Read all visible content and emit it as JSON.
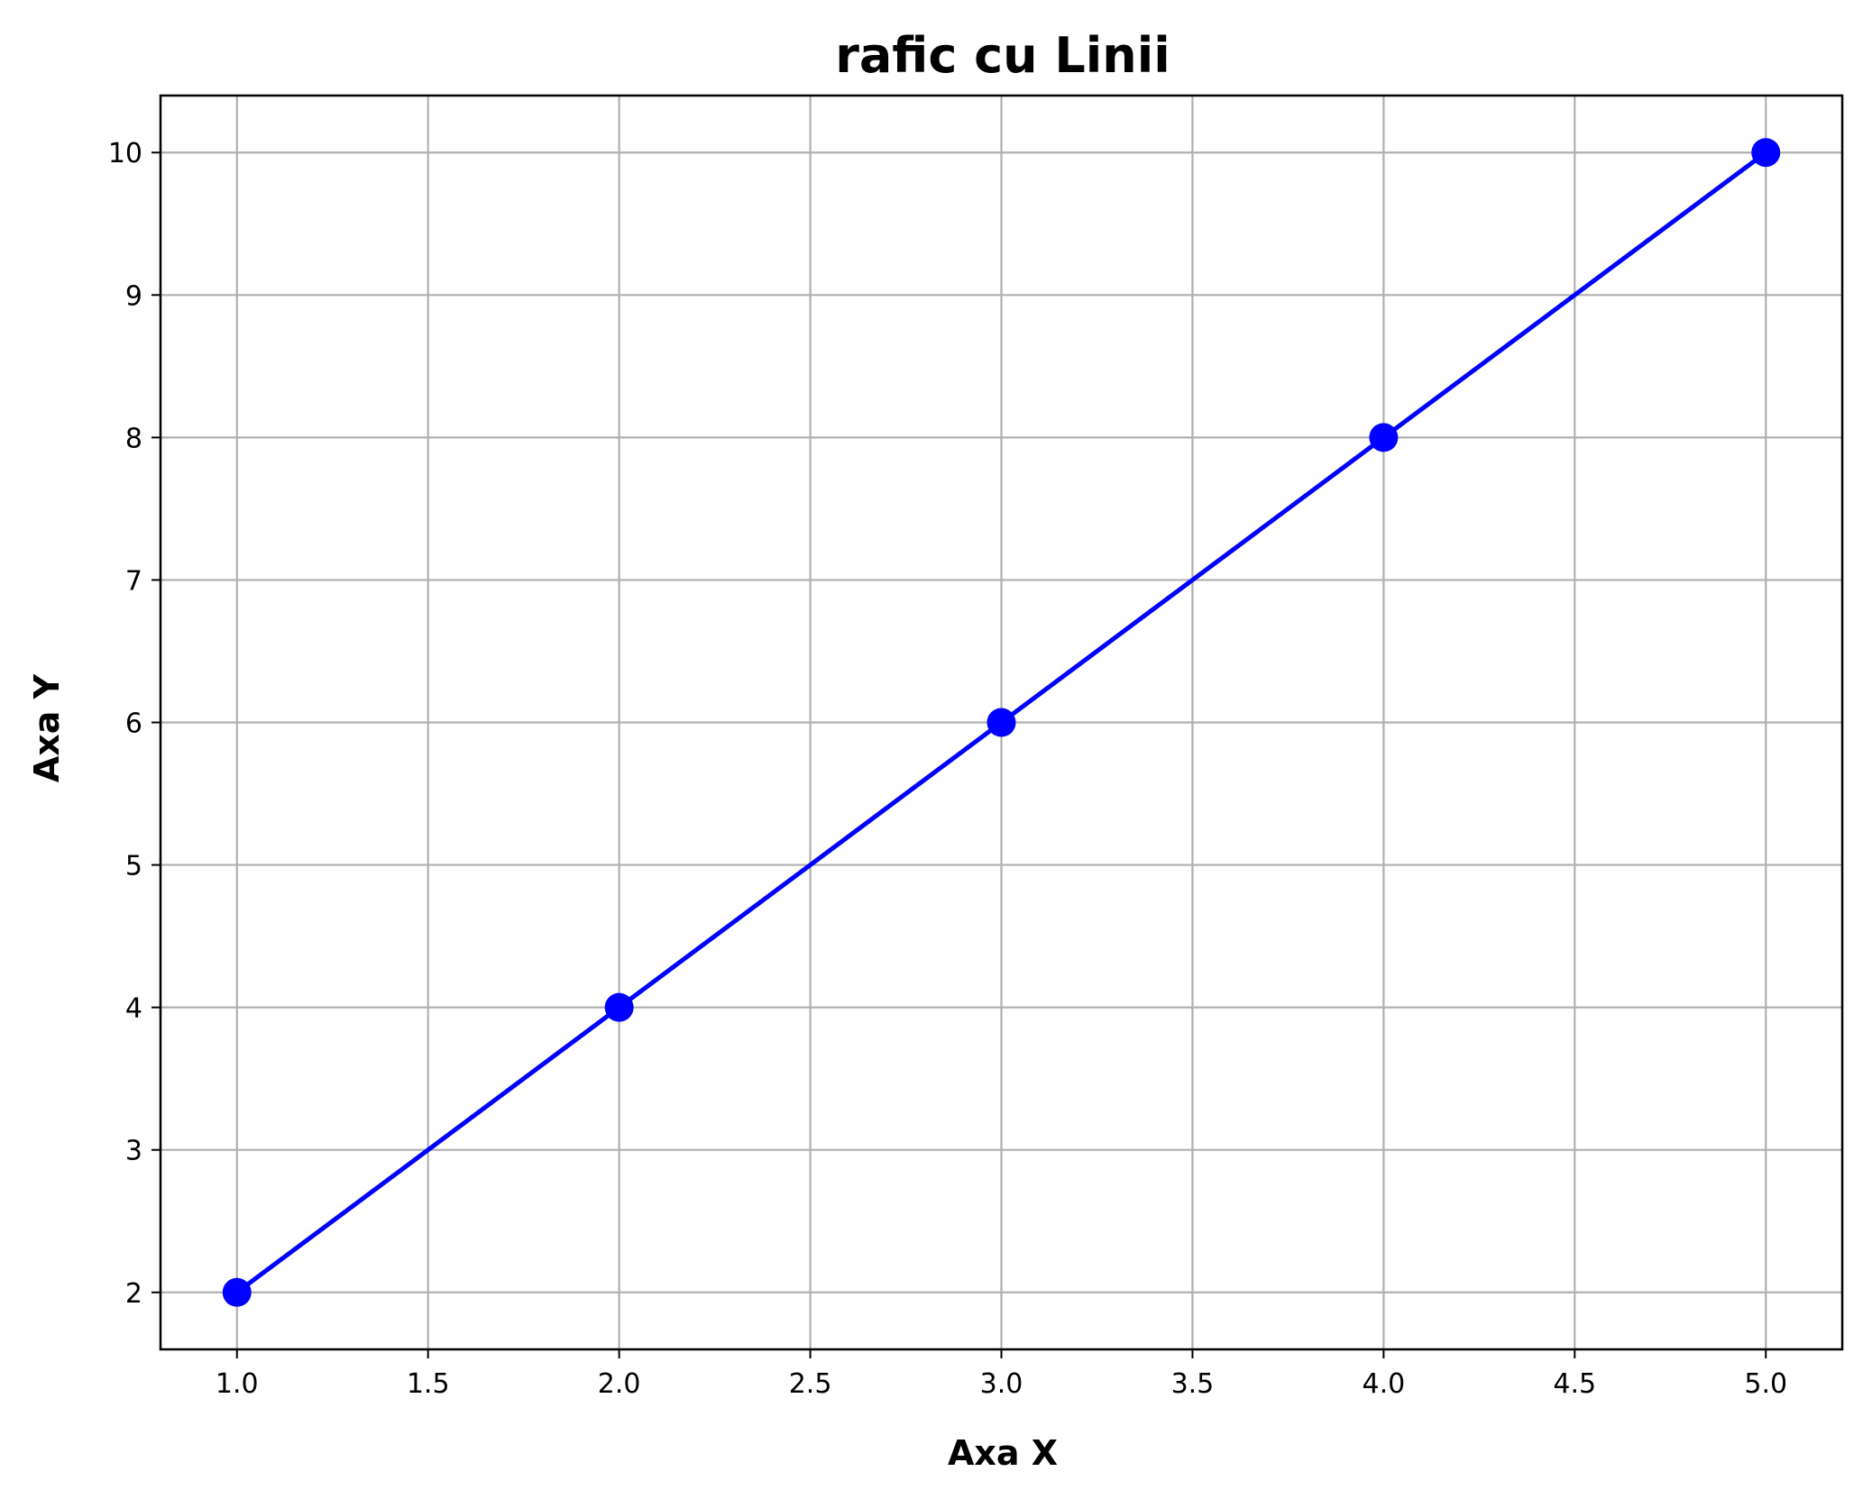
{
  "chart_data": {
    "type": "line",
    "title": "rafic cu Linii",
    "xlabel": "Axa X",
    "ylabel": "Axa Y",
    "xlim": [
      0.8,
      5.2
    ],
    "ylim": [
      1.6,
      10.4
    ],
    "xticks": [
      1.0,
      1.5,
      2.0,
      2.5,
      3.0,
      3.5,
      4.0,
      4.5,
      5.0
    ],
    "xtick_labels": [
      "1.0",
      "1.5",
      "2.0",
      "2.5",
      "3.0",
      "3.5",
      "4.0",
      "4.5",
      "5.0"
    ],
    "yticks": [
      2,
      3,
      4,
      5,
      6,
      7,
      8,
      9,
      10
    ],
    "ytick_labels": [
      "2",
      "3",
      "4",
      "5",
      "6",
      "7",
      "8",
      "9",
      "10"
    ],
    "grid": true,
    "series": [
      {
        "x": [
          1,
          2,
          3,
          4,
          5
        ],
        "y": [
          2,
          4,
          6,
          8,
          10
        ],
        "color": "#0000ff",
        "marker": "circle"
      }
    ],
    "colors": {
      "grid": "#b0b0b0",
      "axes": "#000000",
      "background": "#ffffff"
    }
  }
}
